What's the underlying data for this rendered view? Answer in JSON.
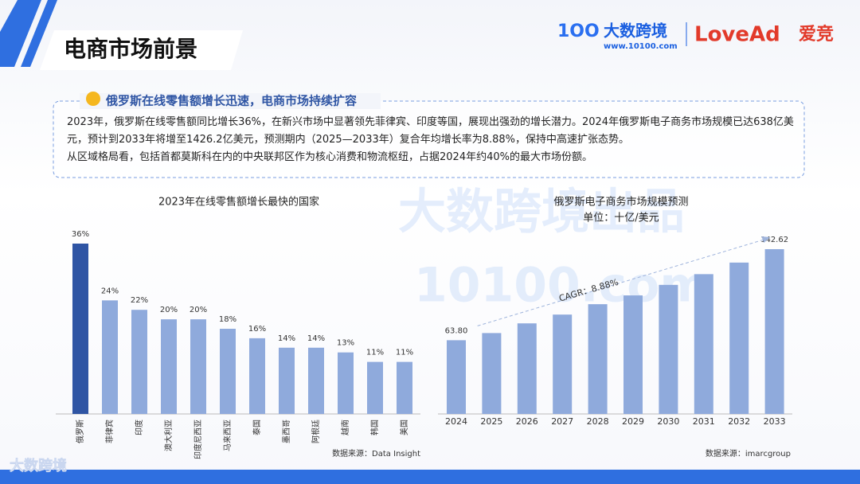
{
  "header": {
    "title": "电商市场前景",
    "brand": "大数跨境",
    "site": "www.10100.com",
    "partner": "LoveAd",
    "partner_cn": "爱竞",
    "footer_brand": "大数跨境"
  },
  "watermark": {
    "line1": "大数跨境出品",
    "line2": "10100.com"
  },
  "callout": {
    "heading": "俄罗斯在线零售额增长迅速，电商市场持续扩容",
    "paragraphs": [
      "2023年，俄罗斯在线零售额同比增长36%，在新兴市场中显著领先菲律宾、印度等国，展现出强劲的增长潜力。2024年俄罗斯电子商务市场规模已达638亿美元，预计到2033年将增至1426.2亿美元，预测期内（2025—2033年）复合年均增长率为8.88%，保持中高速扩张态势。",
      "从区域格局看，包括首都莫斯科在内的中央联邦区作为核心消费和物流枢纽，占据2024年约40%的最大市场份额。"
    ]
  },
  "chart_data": [
    {
      "type": "bar",
      "title": "2023年在线零售额增长最快的国家",
      "source": "数据来源：Data Insight",
      "categories": [
        "俄罗斯",
        "菲律宾",
        "印度",
        "澳大利亚",
        "印度尼西亚",
        "马来西亚",
        "泰国",
        "墨西哥",
        "阿根廷",
        "越南",
        "韩国",
        "美国"
      ],
      "values": [
        36,
        24,
        22,
        20,
        20,
        18,
        16,
        14,
        14,
        13,
        11,
        11
      ],
      "value_labels": [
        "36%",
        "24%",
        "22%",
        "20%",
        "20%",
        "18%",
        "16%",
        "14%",
        "14%",
        "13%",
        "11%",
        "11%"
      ],
      "colors": [
        "#2f55a4",
        "#8faadc",
        "#8faadc",
        "#8faadc",
        "#8faadc",
        "#8faadc",
        "#8faadc",
        "#8faadc",
        "#8faadc",
        "#8faadc",
        "#8faadc",
        "#8faadc"
      ]
    },
    {
      "type": "bar",
      "title": "俄罗斯电子商务市场规模预测",
      "subtitle": "单位：十亿/美元",
      "source": "数据来源：imarcgroup",
      "annotation": "CAGR：8.88%",
      "categories": [
        "2024",
        "2025",
        "2026",
        "2027",
        "2028",
        "2029",
        "2030",
        "2031",
        "2032",
        "2033"
      ],
      "values": [
        63.8,
        70,
        78.4,
        86,
        95,
        102.6,
        111.7,
        121,
        131,
        142.62
      ],
      "value_labels": [
        "63.80",
        null,
        null,
        null,
        null,
        null,
        null,
        null,
        null,
        "142.62"
      ],
      "color": "#8faadc"
    }
  ]
}
